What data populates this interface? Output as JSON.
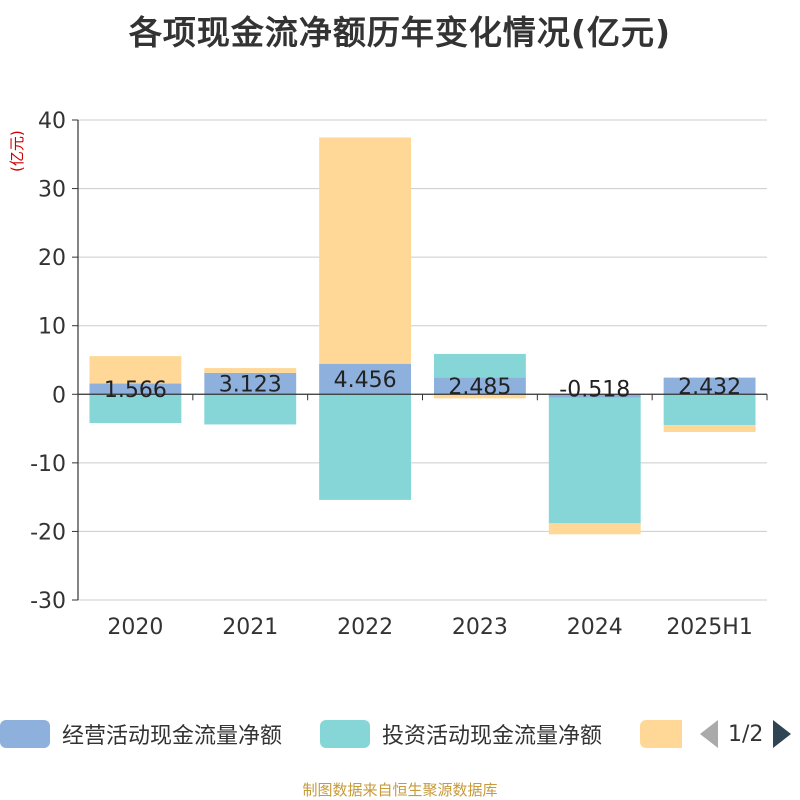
{
  "title": "各项现金流净额历年变化情况(亿元)",
  "y_unit_label": "(亿元)",
  "footer": "制图数据来自恒生聚源数据库",
  "legend": {
    "items": [
      {
        "label": "经营活动现金流量净额",
        "color": "#8eb0dd"
      },
      {
        "label": "投资活动现金流量净额",
        "color": "#86d6d8"
      },
      {
        "label": "",
        "color": "#ffd898"
      }
    ],
    "page_indicator": "1/2"
  },
  "chart_data": {
    "type": "bar",
    "stacked": true,
    "categories": [
      "2020",
      "2021",
      "2022",
      "2023",
      "2024",
      "2025H1"
    ],
    "ylim": [
      -30,
      40
    ],
    "yticks": [
      40,
      30,
      20,
      10,
      0,
      -10,
      -20,
      -30
    ],
    "grid": true,
    "series": [
      {
        "name": "经营活动现金流量净额",
        "color": "#8eb0dd",
        "values": [
          1.566,
          3.123,
          4.456,
          2.485,
          -0.518,
          2.432
        ],
        "labels": [
          "1.566",
          "3.123",
          "4.456",
          "2.485",
          "-0.518",
          "2.432"
        ]
      },
      {
        "name": "投资活动现金流量净额",
        "color": "#86d6d8",
        "values": [
          -4.2,
          -4.4,
          -15.4,
          3.4,
          -18.3,
          -4.5
        ]
      },
      {
        "color": "#ffd898",
        "values": [
          4.0,
          0.7,
          33.0,
          -0.6,
          -1.6,
          -1.0
        ]
      }
    ]
  }
}
